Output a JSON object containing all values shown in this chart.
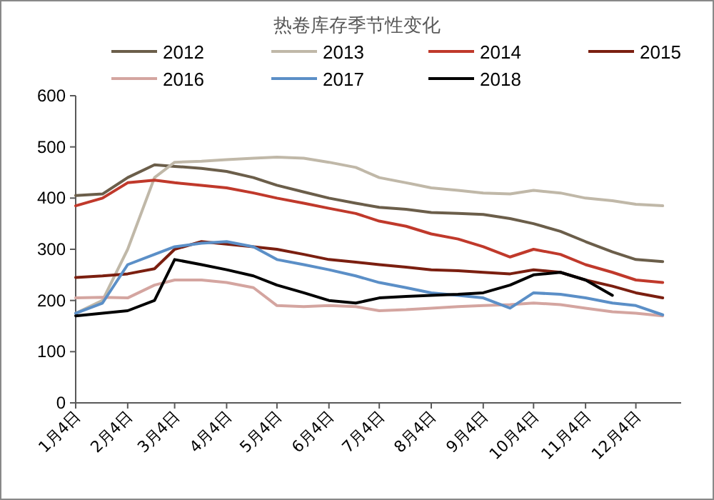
{
  "chart_data": {
    "type": "line",
    "title": "热卷库存季节性变化",
    "xlim": [
      "--01-04",
      "--12-31"
    ],
    "xticks": [
      {
        "value": "--01-04",
        "label": "1月4日"
      },
      {
        "value": "--02-04",
        "label": "2月4日"
      },
      {
        "value": "--03-04",
        "label": "3月4日"
      },
      {
        "value": "--04-04",
        "label": "4月4日"
      },
      {
        "value": "--05-04",
        "label": "5月4日"
      },
      {
        "value": "--06-04",
        "label": "6月4日"
      },
      {
        "value": "--07-04",
        "label": "7月4日"
      },
      {
        "value": "--08-04",
        "label": "8月4日"
      },
      {
        "value": "--09-04",
        "label": "9月4日"
      },
      {
        "value": "--10-04",
        "label": "10月4日"
      },
      {
        "value": "--11-04",
        "label": "11月4日"
      },
      {
        "value": "--12-04",
        "label": "12月4日"
      }
    ],
    "ylim": [
      0,
      600
    ],
    "yticks": [
      0,
      100,
      200,
      300,
      400,
      500,
      600
    ],
    "grid": false,
    "legend": "top",
    "marker": "none",
    "line_style": "solid",
    "x": [
      "--01-04",
      "--01-20",
      "--02-04",
      "--02-20",
      "--03-04",
      "--03-20",
      "--04-04",
      "--04-20",
      "--05-04",
      "--05-20",
      "--06-04",
      "--06-20",
      "--07-04",
      "--07-20",
      "--08-04",
      "--08-20",
      "--09-04",
      "--09-20",
      "--10-04",
      "--10-20",
      "--11-04",
      "--11-20",
      "--12-04",
      "--12-20"
    ],
    "series": [
      {
        "name": "2012",
        "color": "#6b5e4a",
        "values": [
          405,
          408,
          440,
          465,
          462,
          458,
          452,
          440,
          425,
          412,
          400,
          390,
          382,
          378,
          372,
          370,
          368,
          360,
          350,
          335,
          315,
          295,
          280,
          276
        ]
      },
      {
        "name": "2013",
        "color": "#c0b8a8",
        "values": [
          175,
          200,
          300,
          440,
          470,
          472,
          475,
          478,
          480,
          478,
          470,
          460,
          440,
          430,
          420,
          415,
          410,
          408,
          415,
          410,
          400,
          395,
          388,
          385
        ]
      },
      {
        "name": "2014",
        "color": "#c0392b",
        "values": [
          385,
          400,
          430,
          435,
          430,
          425,
          420,
          410,
          400,
          390,
          380,
          370,
          355,
          345,
          330,
          320,
          305,
          285,
          300,
          290,
          270,
          255,
          240,
          235
        ]
      },
      {
        "name": "2015",
        "color": "#7b1f10",
        "values": [
          245,
          248,
          252,
          262,
          300,
          315,
          310,
          305,
          300,
          290,
          280,
          275,
          270,
          265,
          260,
          258,
          255,
          252,
          260,
          255,
          240,
          228,
          215,
          205
        ]
      },
      {
        "name": "2016",
        "color": "#d4a5a0",
        "values": [
          205,
          206,
          205,
          230,
          240,
          240,
          235,
          225,
          190,
          188,
          190,
          188,
          180,
          182,
          185,
          188,
          190,
          192,
          195,
          192,
          185,
          178,
          175,
          170
        ]
      },
      {
        "name": "2017",
        "color": "#5b8fc7",
        "values": [
          175,
          195,
          270,
          290,
          305,
          312,
          315,
          305,
          280,
          270,
          260,
          248,
          235,
          225,
          215,
          210,
          205,
          185,
          215,
          212,
          205,
          195,
          190,
          172
        ]
      },
      {
        "name": "2018",
        "color": "#000000",
        "values": [
          170,
          175,
          180,
          200,
          280,
          270,
          260,
          248,
          230,
          215,
          200,
          195,
          205,
          208,
          210,
          212,
          215,
          230,
          250,
          255,
          240,
          210,
          null,
          null
        ]
      }
    ]
  }
}
